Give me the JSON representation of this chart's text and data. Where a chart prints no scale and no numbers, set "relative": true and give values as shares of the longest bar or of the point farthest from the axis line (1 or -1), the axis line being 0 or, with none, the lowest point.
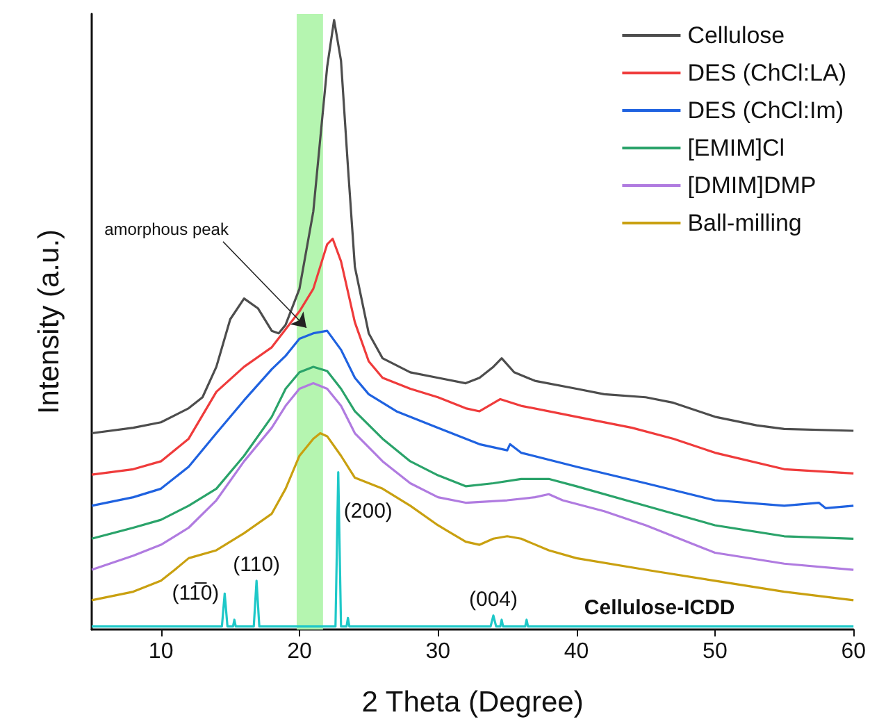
{
  "chart_data": {
    "type": "line",
    "relative": true,
    "xlabel": "2 Theta (Degree)",
    "ylabel": "Intensity (a.u.)",
    "xlim": [
      5,
      60
    ],
    "xticks": [
      10,
      20,
      30,
      40,
      50,
      60
    ],
    "grid": false,
    "legend": "top right",
    "marker": "none",
    "line_style": "solid",
    "series": [
      {
        "name": "Cellulose",
        "color": "#4d4d4d",
        "x": [
          5,
          8,
          10,
          12,
          13,
          14,
          15,
          16,
          17,
          18,
          18.5,
          19,
          20,
          21,
          21.5,
          22,
          22.5,
          23,
          23.5,
          24,
          25,
          26,
          28,
          30,
          32,
          33,
          34,
          34.6,
          35.5,
          37,
          40,
          42,
          45,
          47,
          50,
          53,
          55,
          60
        ],
        "values": [
          0.322,
          0.331,
          0.34,
          0.363,
          0.381,
          0.431,
          0.509,
          0.543,
          0.527,
          0.49,
          0.486,
          0.5,
          0.559,
          0.686,
          0.805,
          0.923,
          1.0,
          0.933,
          0.759,
          0.595,
          0.486,
          0.445,
          0.422,
          0.413,
          0.404,
          0.413,
          0.431,
          0.445,
          0.422,
          0.408,
          0.395,
          0.386,
          0.381,
          0.372,
          0.349,
          0.335,
          0.329,
          0.326
        ]
      },
      {
        "name": "DES (ChCl:LA)",
        "color": "#ef3b3b",
        "x": [
          5,
          8,
          10,
          12,
          14,
          16,
          18,
          20,
          21,
          22,
          22.4,
          23,
          24,
          25,
          26,
          28,
          30,
          32,
          33,
          34.5,
          36,
          40,
          44,
          47,
          50,
          55,
          60
        ],
        "values": [
          0.254,
          0.263,
          0.276,
          0.313,
          0.39,
          0.431,
          0.463,
          0.522,
          0.559,
          0.632,
          0.641,
          0.604,
          0.504,
          0.44,
          0.413,
          0.395,
          0.381,
          0.363,
          0.358,
          0.378,
          0.367,
          0.349,
          0.331,
          0.313,
          0.29,
          0.263,
          0.256
        ]
      },
      {
        "name": "DES (ChCl:Im)",
        "color": "#1f62e0",
        "x": [
          5,
          8,
          10,
          12,
          14,
          16,
          18,
          19,
          20,
          21,
          22,
          23,
          24,
          25,
          27,
          30,
          33,
          35,
          35.2,
          36,
          40,
          45,
          50,
          55,
          57.5,
          58,
          60
        ],
        "values": [
          0.203,
          0.217,
          0.231,
          0.267,
          0.322,
          0.376,
          0.427,
          0.449,
          0.477,
          0.486,
          0.49,
          0.459,
          0.413,
          0.386,
          0.358,
          0.331,
          0.304,
          0.294,
          0.304,
          0.29,
          0.267,
          0.24,
          0.212,
          0.203,
          0.208,
          0.199,
          0.203
        ]
      },
      {
        "name": "[EMIM]Cl",
        "color": "#2aa36a",
        "x": [
          5,
          8,
          10,
          12,
          14,
          16,
          18,
          19,
          20,
          21,
          22,
          23,
          24,
          26,
          28,
          30,
          32,
          34,
          36,
          38,
          40,
          45,
          50,
          55,
          60
        ],
        "values": [
          0.149,
          0.167,
          0.18,
          0.203,
          0.231,
          0.285,
          0.349,
          0.395,
          0.422,
          0.431,
          0.424,
          0.395,
          0.358,
          0.313,
          0.276,
          0.253,
          0.235,
          0.24,
          0.247,
          0.247,
          0.235,
          0.203,
          0.171,
          0.153,
          0.149
        ]
      },
      {
        "name": "[DMIM]DMP",
        "color": "#b07be0",
        "x": [
          5,
          8,
          10,
          12,
          14,
          16,
          18,
          19,
          20,
          21,
          22,
          23,
          24,
          26,
          28,
          30,
          32,
          35,
          37,
          38,
          39,
          42,
          45,
          48,
          50,
          55,
          60
        ],
        "values": [
          0.098,
          0.121,
          0.139,
          0.167,
          0.212,
          0.276,
          0.331,
          0.367,
          0.395,
          0.404,
          0.395,
          0.367,
          0.322,
          0.276,
          0.24,
          0.217,
          0.208,
          0.212,
          0.217,
          0.222,
          0.212,
          0.194,
          0.171,
          0.144,
          0.126,
          0.108,
          0.098
        ]
      },
      {
        "name": "Ball-milling",
        "color": "#c9a010",
        "x": [
          5,
          8,
          10,
          11,
          12,
          14,
          16,
          18,
          19,
          20,
          21,
          21.5,
          22,
          23,
          24,
          26,
          28,
          30,
          32,
          33,
          34,
          35,
          36,
          38,
          40,
          45,
          50,
          55,
          60
        ],
        "values": [
          0.048,
          0.062,
          0.08,
          0.098,
          0.117,
          0.13,
          0.158,
          0.19,
          0.231,
          0.285,
          0.313,
          0.322,
          0.317,
          0.285,
          0.249,
          0.231,
          0.203,
          0.171,
          0.144,
          0.139,
          0.149,
          0.153,
          0.149,
          0.13,
          0.117,
          0.098,
          0.08,
          0.062,
          0.048
        ]
      },
      {
        "name": "Cellulose-ICDD",
        "color": "#1ec8c8",
        "x": [
          5,
          14.4,
          14.6,
          14.8,
          15.2,
          15.3,
          15.4,
          16.7,
          16.9,
          17.1,
          22.6,
          22.8,
          23.0,
          23.4,
          23.5,
          23.6,
          33.8,
          34,
          34.2,
          34.5,
          34.6,
          34.7,
          36.3,
          36.4,
          36.5,
          46,
          60
        ],
        "values": [
          0.005,
          0.005,
          0.059,
          0.005,
          0.005,
          0.016,
          0.005,
          0.005,
          0.08,
          0.005,
          0.005,
          0.258,
          0.005,
          0.005,
          0.019,
          0.005,
          0.005,
          0.023,
          0.005,
          0.005,
          0.016,
          0.005,
          0.005,
          0.016,
          0.005,
          0.005,
          0.005
        ]
      }
    ],
    "bands": [
      {
        "axis": "x",
        "from": 19.8,
        "to": 21.7,
        "color": "#b5f5b0"
      }
    ],
    "annotations": [
      {
        "text": "amorphous peak",
        "x": 20.5,
        "y": 0.495
      },
      {
        "text": "(11̅0)",
        "x": 14.6,
        "y": 0.059
      },
      {
        "text": "(110)",
        "x": 16.9,
        "y": 0.08
      },
      {
        "text": "(200)",
        "x": 22.8,
        "y": 0.258
      },
      {
        "text": "(004)",
        "x": 34,
        "y": 0.023
      }
    ]
  }
}
